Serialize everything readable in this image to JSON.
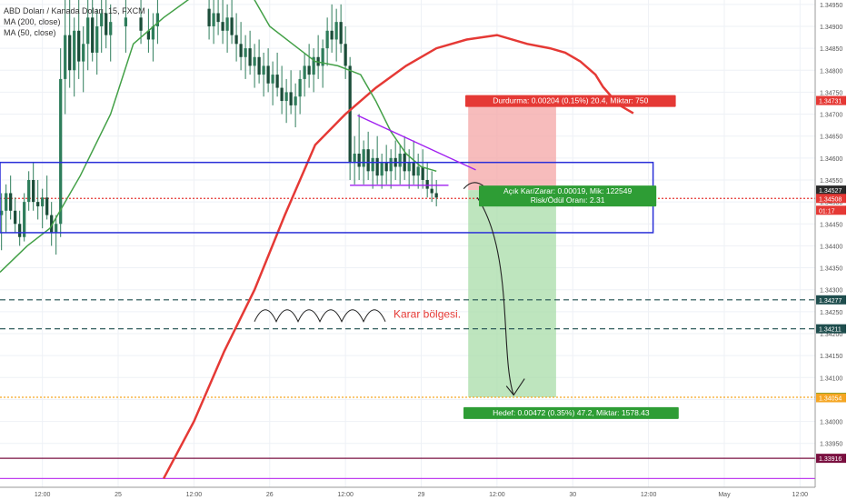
{
  "header": {
    "symbol_line": "ABD Doları / Kanada Doları, 15, FXCM",
    "indicators": [
      "MA (200, close)",
      "MA (50, close)"
    ]
  },
  "colors": {
    "background": "#ffffff",
    "grid": "#eef1f6",
    "axis_text": "#555555",
    "candle": "#2e7d5b",
    "ma200": "#e53935",
    "ma50": "#43a047",
    "range_box": "#2a2fd8",
    "triangle": "#a020f0",
    "stop_zone": "#f4a5a5",
    "target_zone": "#a8dca8",
    "stop_label_bg": "#e53935",
    "pnl_label_bg": "#2e9d35",
    "dashed_level": "#1f4e4e",
    "orange_level": "#f5a623",
    "purple_level": "#7a1040",
    "violet_level": "#c040f0",
    "karar_text": "#e53935"
  },
  "annotations": {
    "stop_label": "Durdurma: 0.00204 (0.15%) 20.4, Miktar: 750",
    "pnl_label_line1": "Açık Kar/Zarar: 0.00019, Mik: 122549",
    "pnl_label_line2": "Risk/Ödül Oranı: 2.31",
    "target_label": "Hedef: 0.00472 (0.35%) 47.2, Miktar: 1578.43",
    "karar_label": "Karar bölgesi.",
    "countdown": "01:17"
  },
  "chart_data": {
    "type": "candlestick",
    "ylim": [
      1.3385,
      1.3496
    ],
    "y_ticks": [
      1.3395,
      1.34,
      1.3405,
      1.341,
      1.3415,
      1.342,
      1.3425,
      1.343,
      1.3435,
      1.344,
      1.3445,
      1.345,
      1.3455,
      1.346,
      1.3465,
      1.347,
      1.3475,
      1.348,
      1.3485,
      1.349,
      1.3495
    ],
    "y_tick_labels": [
      "1.33950",
      "1.34000",
      "1.34050",
      "1.34100",
      "1.34150",
      "1.34200",
      "1.34250",
      "1.34300",
      "1.34350",
      "1.34400",
      "1.34450",
      "1.34500",
      "1.34550",
      "1.34600",
      "1.34650",
      "1.34700",
      "1.34750",
      "1.34800",
      "1.34850",
      "1.34900",
      "1.34950"
    ],
    "x_ticks": [
      "12:00",
      "25",
      "12:00",
      "26",
      "12:00",
      "29",
      "12:00",
      "30",
      "12:00",
      "May",
      "12:00"
    ],
    "x_tick_values": [
      0.5,
      1.0,
      1.5,
      2.0,
      2.5,
      3.0,
      3.5,
      4.0,
      4.5,
      5.0,
      5.5
    ],
    "x_range": [
      0.22,
      5.6
    ],
    "price_badges": [
      {
        "label": "1.34731",
        "value": 1.34731,
        "color": "#e53935"
      },
      {
        "label": "1.34527",
        "value": 1.34527,
        "color": "#2a2a2a"
      },
      {
        "label": "1.34508",
        "value": 1.34508,
        "color": "#e53935"
      },
      {
        "label": "1.34277",
        "value": 1.34277,
        "color": "#1f4e4e"
      },
      {
        "label": "1.34211",
        "value": 1.34211,
        "color": "#1f4e4e"
      },
      {
        "label": "1.34055",
        "value": 1.34055,
        "color": "#2e9d35"
      },
      {
        "label": "1.34054",
        "value": 1.34054,
        "color": "#f5a623"
      },
      {
        "label": "1.33916",
        "value": 1.33916,
        "color": "#7a1040"
      }
    ],
    "horizontal_levels": [
      {
        "value": 1.34277,
        "style": "dashed",
        "color": "#1f4e4e"
      },
      {
        "value": 1.34211,
        "style": "dashed",
        "color": "#1f4e4e"
      },
      {
        "value": 1.34055,
        "style": "dotted",
        "color": "#f5a623"
      },
      {
        "value": 1.33916,
        "style": "solid",
        "color": "#7a1040"
      },
      {
        "value": 1.3387,
        "style": "solid",
        "color": "#c040f0"
      },
      {
        "value": 1.34508,
        "style": "dotted",
        "color": "#e53935"
      }
    ],
    "range_box": {
      "x0": 0.22,
      "x1": 4.53,
      "y_top": 1.3459,
      "y_bottom": 1.3443
    },
    "position": {
      "x0": 3.31,
      "x1": 3.89,
      "entry": 1.34527,
      "stop": 1.34731,
      "target": 1.34055
    },
    "ma200": [
      [
        1.3,
        1.3387
      ],
      [
        1.5,
        1.34
      ],
      [
        1.7,
        1.3416
      ],
      [
        1.9,
        1.343
      ],
      [
        2.1,
        1.3447
      ],
      [
        2.3,
        1.3463
      ],
      [
        2.5,
        1.347
      ],
      [
        2.7,
        1.3476
      ],
      [
        2.9,
        1.3481
      ],
      [
        3.1,
        1.3485
      ],
      [
        3.3,
        1.3487
      ],
      [
        3.5,
        1.3488
      ],
      [
        3.7,
        1.3486
      ],
      [
        3.85,
        1.3485
      ],
      [
        3.95,
        1.3484
      ],
      [
        4.05,
        1.3482
      ],
      [
        4.15,
        1.3479
      ],
      [
        4.2,
        1.34762
      ],
      [
        4.3,
        1.34722
      ],
      [
        4.4,
        1.34702
      ]
    ],
    "ma50": [
      [
        0.22,
        1.3434
      ],
      [
        0.4,
        1.344
      ],
      [
        0.55,
        1.3444
      ],
      [
        0.75,
        1.3456
      ],
      [
        0.95,
        1.347
      ],
      [
        1.1,
        1.3486
      ],
      [
        1.3,
        1.3492
      ],
      [
        1.5,
        1.3497
      ],
      [
        1.7,
        1.3503
      ],
      [
        1.85,
        1.3499
      ],
      [
        2.0,
        1.349
      ],
      [
        2.15,
        1.3486
      ],
      [
        2.3,
        1.3482
      ],
      [
        2.45,
        1.3481
      ],
      [
        2.6,
        1.3479
      ],
      [
        2.7,
        1.3473
      ],
      [
        2.8,
        1.3466
      ],
      [
        2.9,
        1.3461
      ],
      [
        3.0,
        1.3458
      ],
      [
        3.1,
        1.3457
      ]
    ],
    "triangle": {
      "upper": [
        [
          2.58,
          1.34697
        ],
        [
          3.36,
          1.34573
        ]
      ],
      "lower": [
        [
          2.53,
          1.34538
        ],
        [
          3.18,
          1.34538
        ]
      ]
    },
    "candles": [
      {
        "x": 0.23,
        "o": 1.3447,
        "h": 1.3452,
        "l": 1.3439,
        "c": 1.3448
      },
      {
        "x": 0.26,
        "o": 1.3448,
        "h": 1.3454,
        "l": 1.3443,
        "c": 1.3452
      },
      {
        "x": 0.29,
        "o": 1.3452,
        "h": 1.3456,
        "l": 1.3446,
        "c": 1.3448
      },
      {
        "x": 0.32,
        "o": 1.3448,
        "h": 1.3451,
        "l": 1.3443,
        "c": 1.3445
      },
      {
        "x": 0.35,
        "o": 1.3445,
        "h": 1.3448,
        "l": 1.344,
        "c": 1.3442
      },
      {
        "x": 0.38,
        "o": 1.3442,
        "h": 1.3452,
        "l": 1.3441,
        "c": 1.345
      },
      {
        "x": 0.41,
        "o": 1.345,
        "h": 1.3457,
        "l": 1.3448,
        "c": 1.3455
      },
      {
        "x": 0.44,
        "o": 1.3455,
        "h": 1.3459,
        "l": 1.3448,
        "c": 1.345
      },
      {
        "x": 0.47,
        "o": 1.345,
        "h": 1.3455,
        "l": 1.3446,
        "c": 1.3449
      },
      {
        "x": 0.5,
        "o": 1.3449,
        "h": 1.3453,
        "l": 1.3444,
        "c": 1.3451
      },
      {
        "x": 0.53,
        "o": 1.3451,
        "h": 1.3456,
        "l": 1.3446,
        "c": 1.3447
      },
      {
        "x": 0.56,
        "o": 1.3447,
        "h": 1.345,
        "l": 1.344,
        "c": 1.3443
      },
      {
        "x": 0.59,
        "o": 1.3443,
        "h": 1.3447,
        "l": 1.3438,
        "c": 1.3445
      },
      {
        "x": 0.62,
        "o": 1.3445,
        "h": 1.3485,
        "l": 1.3442,
        "c": 1.3478
      },
      {
        "x": 0.65,
        "o": 1.3478,
        "h": 1.3496,
        "l": 1.347,
        "c": 1.3488
      },
      {
        "x": 0.68,
        "o": 1.3488,
        "h": 1.3496,
        "l": 1.3476,
        "c": 1.348
      },
      {
        "x": 0.71,
        "o": 1.348,
        "h": 1.3492,
        "l": 1.3474,
        "c": 1.3489
      },
      {
        "x": 0.74,
        "o": 1.3489,
        "h": 1.3496,
        "l": 1.3478,
        "c": 1.3482
      },
      {
        "x": 0.77,
        "o": 1.3482,
        "h": 1.349,
        "l": 1.3475,
        "c": 1.3486
      },
      {
        "x": 0.8,
        "o": 1.3486,
        "h": 1.3496,
        "l": 1.348,
        "c": 1.3492
      },
      {
        "x": 0.83,
        "o": 1.3492,
        "h": 1.3496,
        "l": 1.3482,
        "c": 1.3484
      },
      {
        "x": 0.86,
        "o": 1.3484,
        "h": 1.3494,
        "l": 1.3479,
        "c": 1.349
      },
      {
        "x": 0.89,
        "o": 1.349,
        "h": 1.3496,
        "l": 1.3484,
        "c": 1.3493
      },
      {
        "x": 0.92,
        "o": 1.3493,
        "h": 1.3496,
        "l": 1.3485,
        "c": 1.3488
      },
      {
        "x": 0.95,
        "o": 1.3488,
        "h": 1.3495,
        "l": 1.3482,
        "c": 1.3491
      },
      {
        "x": 1.05,
        "o": 1.349,
        "h": 1.3496,
        "l": 1.3484,
        "c": 1.3492
      },
      {
        "x": 1.15,
        "o": 1.3492,
        "h": 1.3496,
        "l": 1.3486,
        "c": 1.3489
      },
      {
        "x": 1.2,
        "o": 1.3489,
        "h": 1.3494,
        "l": 1.3484,
        "c": 1.3487
      },
      {
        "x": 1.23,
        "o": 1.3487,
        "h": 1.3493,
        "l": 1.3482,
        "c": 1.349
      },
      {
        "x": 1.26,
        "o": 1.349,
        "h": 1.3496,
        "l": 1.3486,
        "c": 1.3493
      },
      {
        "x": 1.6,
        "o": 1.3494,
        "h": 1.3496,
        "l": 1.3487,
        "c": 1.349
      },
      {
        "x": 1.63,
        "o": 1.349,
        "h": 1.3496,
        "l": 1.3486,
        "c": 1.3493
      },
      {
        "x": 1.66,
        "o": 1.3493,
        "h": 1.3496,
        "l": 1.3488,
        "c": 1.3491
      },
      {
        "x": 1.69,
        "o": 1.3491,
        "h": 1.3496,
        "l": 1.3486,
        "c": 1.3489
      },
      {
        "x": 1.72,
        "o": 1.3489,
        "h": 1.3495,
        "l": 1.3484,
        "c": 1.3492
      },
      {
        "x": 1.75,
        "o": 1.3492,
        "h": 1.3496,
        "l": 1.3486,
        "c": 1.3488
      },
      {
        "x": 1.78,
        "o": 1.3488,
        "h": 1.3493,
        "l": 1.3482,
        "c": 1.3486
      },
      {
        "x": 1.81,
        "o": 1.3486,
        "h": 1.3491,
        "l": 1.348,
        "c": 1.3483
      },
      {
        "x": 1.84,
        "o": 1.3483,
        "h": 1.3488,
        "l": 1.3478,
        "c": 1.3485
      },
      {
        "x": 1.87,
        "o": 1.3485,
        "h": 1.3489,
        "l": 1.3479,
        "c": 1.3481
      },
      {
        "x": 1.9,
        "o": 1.3481,
        "h": 1.3486,
        "l": 1.3476,
        "c": 1.3483
      },
      {
        "x": 1.93,
        "o": 1.3483,
        "h": 1.3487,
        "l": 1.3477,
        "c": 1.3479
      },
      {
        "x": 1.96,
        "o": 1.3479,
        "h": 1.3484,
        "l": 1.3474,
        "c": 1.3481
      },
      {
        "x": 1.99,
        "o": 1.3481,
        "h": 1.3485,
        "l": 1.3475,
        "c": 1.3477
      },
      {
        "x": 2.02,
        "o": 1.3477,
        "h": 1.3482,
        "l": 1.3472,
        "c": 1.3479
      },
      {
        "x": 2.05,
        "o": 1.3479,
        "h": 1.3484,
        "l": 1.3474,
        "c": 1.3476
      },
      {
        "x": 2.08,
        "o": 1.3476,
        "h": 1.3481,
        "l": 1.347,
        "c": 1.3473
      },
      {
        "x": 2.11,
        "o": 1.3473,
        "h": 1.3478,
        "l": 1.3468,
        "c": 1.3475
      },
      {
        "x": 2.14,
        "o": 1.3475,
        "h": 1.348,
        "l": 1.347,
        "c": 1.3472
      },
      {
        "x": 2.17,
        "o": 1.3472,
        "h": 1.3477,
        "l": 1.3467,
        "c": 1.3474
      },
      {
        "x": 2.2,
        "o": 1.3474,
        "h": 1.348,
        "l": 1.347,
        "c": 1.3478
      },
      {
        "x": 2.23,
        "o": 1.3478,
        "h": 1.3484,
        "l": 1.3474,
        "c": 1.3481
      },
      {
        "x": 2.26,
        "o": 1.3481,
        "h": 1.3486,
        "l": 1.3476,
        "c": 1.3479
      },
      {
        "x": 2.29,
        "o": 1.3479,
        "h": 1.3485,
        "l": 1.3475,
        "c": 1.3483
      },
      {
        "x": 2.32,
        "o": 1.3483,
        "h": 1.3488,
        "l": 1.3478,
        "c": 1.3481
      },
      {
        "x": 2.35,
        "o": 1.3481,
        "h": 1.3487,
        "l": 1.3476,
        "c": 1.3485
      },
      {
        "x": 2.38,
        "o": 1.3485,
        "h": 1.3492,
        "l": 1.3481,
        "c": 1.3489
      },
      {
        "x": 2.41,
        "o": 1.3489,
        "h": 1.3495,
        "l": 1.3484,
        "c": 1.3487
      },
      {
        "x": 2.44,
        "o": 1.3487,
        "h": 1.3494,
        "l": 1.3482,
        "c": 1.3491
      },
      {
        "x": 2.47,
        "o": 1.3491,
        "h": 1.3495,
        "l": 1.3484,
        "c": 1.3486
      },
      {
        "x": 2.5,
        "o": 1.3486,
        "h": 1.349,
        "l": 1.3478,
        "c": 1.3481
      },
      {
        "x": 2.53,
        "o": 1.3481,
        "h": 1.3483,
        "l": 1.3455,
        "c": 1.3459
      },
      {
        "x": 2.56,
        "o": 1.3459,
        "h": 1.3465,
        "l": 1.3454,
        "c": 1.3461
      },
      {
        "x": 2.59,
        "o": 1.3461,
        "h": 1.347,
        "l": 1.3455,
        "c": 1.3458
      },
      {
        "x": 2.62,
        "o": 1.3458,
        "h": 1.3464,
        "l": 1.3454,
        "c": 1.3462
      },
      {
        "x": 2.65,
        "o": 1.3462,
        "h": 1.3466,
        "l": 1.3455,
        "c": 1.3457
      },
      {
        "x": 2.68,
        "o": 1.3457,
        "h": 1.3462,
        "l": 1.3453,
        "c": 1.346
      },
      {
        "x": 2.71,
        "o": 1.346,
        "h": 1.3465,
        "l": 1.3454,
        "c": 1.3456
      },
      {
        "x": 2.74,
        "o": 1.3456,
        "h": 1.3461,
        "l": 1.3453,
        "c": 1.3459
      },
      {
        "x": 2.77,
        "o": 1.3459,
        "h": 1.3463,
        "l": 1.3454,
        "c": 1.3457
      },
      {
        "x": 2.8,
        "o": 1.3457,
        "h": 1.3462,
        "l": 1.3453,
        "c": 1.346
      },
      {
        "x": 2.83,
        "o": 1.346,
        "h": 1.3464,
        "l": 1.3455,
        "c": 1.3458
      },
      {
        "x": 2.86,
        "o": 1.3458,
        "h": 1.3463,
        "l": 1.3454,
        "c": 1.3461
      },
      {
        "x": 2.89,
        "o": 1.3461,
        "h": 1.3465,
        "l": 1.3455,
        "c": 1.3457
      },
      {
        "x": 2.92,
        "o": 1.3457,
        "h": 1.3462,
        "l": 1.3453,
        "c": 1.3459
      },
      {
        "x": 2.95,
        "o": 1.3459,
        "h": 1.3464,
        "l": 1.3454,
        "c": 1.3456
      },
      {
        "x": 2.98,
        "o": 1.3456,
        "h": 1.3461,
        "l": 1.3453,
        "c": 1.3458
      },
      {
        "x": 3.01,
        "o": 1.3458,
        "h": 1.3462,
        "l": 1.3453,
        "c": 1.3455
      },
      {
        "x": 3.04,
        "o": 1.3455,
        "h": 1.3459,
        "l": 1.3451,
        "c": 1.3453
      },
      {
        "x": 3.07,
        "o": 1.3453,
        "h": 1.3457,
        "l": 1.345,
        "c": 1.3452
      },
      {
        "x": 3.1,
        "o": 1.3452,
        "h": 1.3455,
        "l": 1.3449,
        "c": 1.3451
      }
    ]
  }
}
